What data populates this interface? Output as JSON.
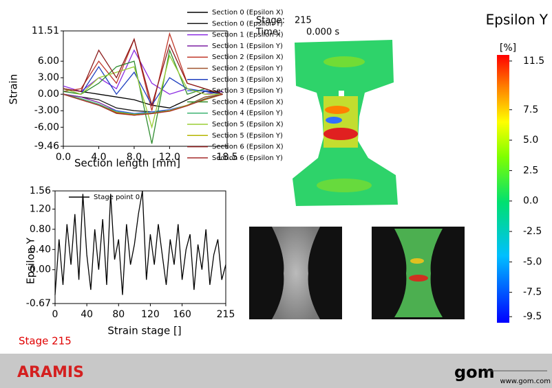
{
  "chart_data": [
    {
      "type": "line",
      "xlabel": "Section length [mm]",
      "ylabel": "Strain",
      "x": [
        0,
        2,
        4,
        6,
        8,
        10,
        12,
        14,
        16,
        18
      ],
      "xlim": [
        0,
        18.5
      ],
      "xticks": [
        {
          "value": 0,
          "label": "0.0"
        },
        {
          "value": 4,
          "label": "4.0"
        },
        {
          "value": 8,
          "label": "8.0"
        },
        {
          "value": 12,
          "label": "12.0"
        },
        18.5
      ],
      "ylim": [
        -9.46,
        11.51
      ],
      "yticks": [
        11.51,
        {
          "value": 6,
          "label": "6.00"
        },
        {
          "value": 3,
          "label": "3.00"
        },
        {
          "value": 0,
          "label": "0.00"
        },
        {
          "value": -3,
          "label": "-3.00"
        },
        {
          "value": -6,
          "label": "-6.00"
        },
        -9.46
      ],
      "series": [
        {
          "name": "Section 0 (Epsilon X)",
          "color": "#000000",
          "values": [
            1,
            0.5,
            0,
            -0.5,
            -1,
            -2,
            -2.5,
            -1,
            0.5,
            0.5
          ]
        },
        {
          "name": "Section 0 (Epsilon Y)",
          "color": "#1a1a1a",
          "values": [
            0,
            -0.5,
            -1,
            -2.5,
            -3,
            -3.2,
            -3,
            -2,
            -0.5,
            0
          ]
        },
        {
          "name": "Section 1 (Epsilon X)",
          "color": "#8a2be2",
          "values": [
            1.5,
            0.5,
            3,
            1,
            8,
            2,
            0,
            1,
            0,
            0.5
          ]
        },
        {
          "name": "Section 1 (Epsilon Y)",
          "color": "#7b1fa2",
          "values": [
            0,
            -0.5,
            -1.5,
            -3,
            -3.5,
            -3.5,
            -3,
            -2,
            -1,
            0
          ]
        },
        {
          "name": "Section 2 (Epsilon X)",
          "color": "#c0392b",
          "values": [
            0.5,
            1,
            6,
            2,
            10,
            -3,
            11,
            2,
            1,
            0
          ]
        },
        {
          "name": "Section 2 (Epsilon Y)",
          "color": "#a0522d",
          "values": [
            0,
            -1,
            -2,
            -3.5,
            -3.8,
            -3.5,
            -3,
            -2,
            -0.5,
            0
          ]
        },
        {
          "name": "Section 3 (Epsilon X)",
          "color": "#1e3fbf",
          "values": [
            1,
            0,
            5,
            0,
            4,
            -2,
            3,
            1,
            0.5,
            0
          ]
        },
        {
          "name": "Section 3 (Epsilon Y)",
          "color": "#4169e1",
          "values": [
            0,
            -1,
            -2,
            -3,
            -3.5,
            -3.2,
            -2.8,
            -2,
            -1,
            0
          ]
        },
        {
          "name": "Section 4 (Epsilon X)",
          "color": "#2e8b2e",
          "values": [
            0.5,
            0,
            2,
            5,
            6,
            -9,
            8,
            0,
            1,
            0
          ]
        },
        {
          "name": "Section 4 (Epsilon Y)",
          "color": "#3cb371",
          "values": [
            0,
            -0.8,
            -1.8,
            -3.2,
            -3.6,
            -3.4,
            -3,
            -2,
            -0.8,
            0
          ]
        },
        {
          "name": "Section 5 (Epsilon X)",
          "color": "#9acd32",
          "values": [
            1,
            0,
            3,
            4,
            5,
            -6,
            7,
            1,
            0,
            0
          ]
        },
        {
          "name": "Section 5 (Epsilon Y)",
          "color": "#b5b500",
          "values": [
            0,
            -1,
            -2,
            -3.3,
            -3.7,
            -3.5,
            -3,
            -2,
            -1,
            0
          ]
        },
        {
          "name": "Section 6 (Epsilon X)",
          "color": "#8b1a1a",
          "values": [
            1,
            0.5,
            8,
            3,
            10,
            -2,
            9,
            2,
            1,
            0
          ]
        },
        {
          "name": "Section 6 (Epsilon Y)",
          "color": "#a52a2a",
          "values": [
            0,
            -1,
            -2,
            -3.4,
            -3.8,
            -3.5,
            -3.1,
            -2.1,
            -0.9,
            0
          ]
        }
      ]
    },
    {
      "type": "line",
      "xlabel": "Strain stage []",
      "ylabel": "Epsilon Y",
      "x": [
        0,
        5,
        10,
        15,
        20,
        25,
        30,
        35,
        40,
        45,
        50,
        55,
        60,
        65,
        70,
        75,
        80,
        85,
        90,
        95,
        100,
        105,
        110,
        115,
        120,
        125,
        130,
        135,
        140,
        145,
        150,
        155,
        160,
        165,
        170,
        175,
        180,
        185,
        190,
        195,
        200,
        205,
        210,
        215
      ],
      "xlim": [
        0,
        215
      ],
      "xticks": [
        0,
        40,
        80,
        120,
        160,
        215
      ],
      "ylim": [
        -0.67,
        1.56
      ],
      "yticks": [
        1.56,
        {
          "value": 1.2,
          "label": "1.20"
        },
        {
          "value": 0.8,
          "label": "0.80"
        },
        {
          "value": 0.4,
          "label": "0.40"
        },
        {
          "value": 0,
          "label": "0.00"
        },
        -0.67
      ],
      "series": [
        {
          "name": "Stage point 0",
          "color": "#000000",
          "values": [
            -0.5,
            0.6,
            -0.3,
            0.9,
            0.1,
            1.1,
            -0.2,
            1.5,
            0.3,
            -0.4,
            0.8,
            0.0,
            1.0,
            -0.3,
            1.5,
            0.2,
            0.6,
            -0.5,
            0.9,
            0.1,
            0.5,
            1.1,
            1.56,
            -0.2,
            0.7,
            0.1,
            0.9,
            0.3,
            -0.3,
            0.6,
            0.1,
            0.9,
            -0.2,
            0.4,
            0.7,
            -0.4,
            0.5,
            0.0,
            0.8,
            -0.3,
            0.3,
            0.6,
            -0.2,
            0.1
          ]
        }
      ]
    }
  ],
  "colorbar": {
    "title": "Epsilon Y",
    "unit": "[%]",
    "lim": [
      -10,
      12
    ],
    "ticks": [
      11.5,
      7.5,
      {
        "value": 5,
        "label": "5.0"
      },
      2.5,
      {
        "value": 0,
        "label": "0.0"
      },
      -2.5,
      {
        "value": -5,
        "label": "-5.0"
      },
      -7.5,
      -9.5
    ]
  },
  "header": {
    "stage_label": "Stage:",
    "stage": 215,
    "time_label": "Time:",
    "time": "0.000 s"
  },
  "stage_footer": "Stage 215",
  "footer": {
    "brand": "ARAMIS",
    "logo": "gom",
    "url": "www.gom.com"
  }
}
